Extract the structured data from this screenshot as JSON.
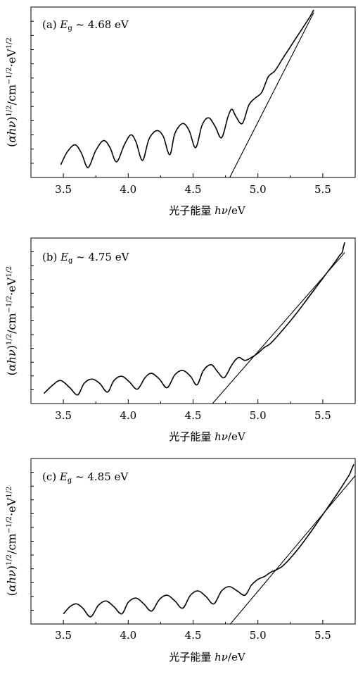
{
  "chart_data": [
    {
      "type": "line",
      "panel_label": "(a)",
      "annotation": "E_g ~ 4.68 eV",
      "annotation_parts": {
        "symbol": "E",
        "subscript": "g",
        "tilde": "~",
        "value": "4.68 eV"
      },
      "xlabel": "光子能量 hν/eV",
      "ylabel": "(αhν)^{1/2}/cm^{-1/2}·eV^{1/2}",
      "xlim": [
        3.25,
        5.75
      ],
      "xticks": [
        3.5,
        4.0,
        4.5,
        5.0,
        5.5
      ],
      "xtick_labels": [
        "3.5",
        "4.0",
        "4.5",
        "5.0",
        "5.5"
      ],
      "series": [
        {
          "x": [
            3.48,
            3.53,
            3.59,
            3.64,
            3.69,
            3.75,
            3.81,
            3.86,
            3.91,
            3.97,
            4.02,
            4.06,
            4.11,
            4.16,
            4.22,
            4.27,
            4.32,
            4.36,
            4.42,
            4.47,
            4.52,
            4.57,
            4.62,
            4.67,
            4.72,
            4.77,
            4.8,
            4.83,
            4.88,
            4.93,
            4.98,
            5.03,
            5.08,
            5.13,
            5.2,
            5.3,
            5.4,
            5.43
          ],
          "y": [
            0.04,
            0.13,
            0.18,
            0.12,
            0.02,
            0.14,
            0.21,
            0.16,
            0.06,
            0.18,
            0.25,
            0.2,
            0.07,
            0.22,
            0.28,
            0.24,
            0.11,
            0.26,
            0.33,
            0.28,
            0.16,
            0.32,
            0.37,
            0.31,
            0.23,
            0.38,
            0.43,
            0.38,
            0.33,
            0.46,
            0.51,
            0.55,
            0.66,
            0.7,
            0.8,
            0.94,
            1.08,
            1.13
          ]
        },
        {
          "x": [
            4.66,
            5.43
          ],
          "y": [
            -0.27,
            1.11
          ]
        }
      ]
    },
    {
      "type": "line",
      "panel_label": "(b)",
      "annotation": "E_g ~ 4.75 eV",
      "annotation_parts": {
        "symbol": "E",
        "subscript": "g",
        "tilde": "~",
        "value": "4.75 eV"
      },
      "xlabel": "光子能量 hν/eV",
      "ylabel": "(αhν)^{1/2}/cm^{-1/2}·eV^{1/2}",
      "xlim": [
        3.25,
        5.75
      ],
      "xticks": [
        3.5,
        4.0,
        4.5,
        5.0,
        5.5
      ],
      "xtick_labels": [
        "3.5",
        "4.0",
        "4.5",
        "5.0",
        "5.5"
      ],
      "series": [
        {
          "x": [
            3.35,
            3.42,
            3.48,
            3.55,
            3.61,
            3.66,
            3.72,
            3.78,
            3.84,
            3.89,
            3.95,
            4.01,
            4.07,
            4.13,
            4.18,
            4.24,
            4.3,
            4.36,
            4.42,
            4.48,
            4.53,
            4.58,
            4.64,
            4.69,
            4.74,
            4.8,
            4.85,
            4.9,
            4.95,
            5.0,
            5.05,
            5.1,
            5.2,
            5.3,
            5.4,
            5.5,
            5.6,
            5.63,
            5.65,
            5.66,
            5.67
          ],
          "y": [
            0.02,
            0.08,
            0.11,
            0.06,
            0.01,
            0.09,
            0.12,
            0.09,
            0.03,
            0.11,
            0.14,
            0.1,
            0.05,
            0.13,
            0.16,
            0.12,
            0.06,
            0.15,
            0.18,
            0.14,
            0.08,
            0.18,
            0.22,
            0.17,
            0.13,
            0.22,
            0.27,
            0.25,
            0.27,
            0.3,
            0.34,
            0.37,
            0.47,
            0.58,
            0.7,
            0.82,
            0.94,
            0.98,
            1.0,
            1.04,
            1.07
          ]
        },
        {
          "x": [
            4.65,
            5.67
          ],
          "y": [
            -0.05,
            1.0
          ]
        }
      ]
    },
    {
      "type": "line",
      "panel_label": "(c)",
      "annotation": "E_g ~ 4.85 eV",
      "annotation_parts": {
        "symbol": "E",
        "subscript": "g",
        "tilde": "~",
        "value": "4.85 eV"
      },
      "xlabel": "光子能量 hν/eV",
      "ylabel": "(αhν)^{1/2}/cm^{-1/2}·eV^{1/2}",
      "xlim": [
        3.25,
        5.75
      ],
      "xticks": [
        3.5,
        4.0,
        4.5,
        5.0,
        5.5
      ],
      "xtick_labels": [
        "3.5",
        "4.0",
        "4.5",
        "5.0",
        "5.5"
      ],
      "series": [
        {
          "x": [
            3.5,
            3.55,
            3.6,
            3.65,
            3.71,
            3.77,
            3.83,
            3.89,
            3.95,
            4.0,
            4.06,
            4.12,
            4.18,
            4.24,
            4.3,
            4.36,
            4.42,
            4.48,
            4.54,
            4.6,
            4.66,
            4.72,
            4.78,
            4.84,
            4.9,
            4.95,
            5.0,
            5.05,
            5.1,
            5.15,
            5.2,
            5.3,
            5.4,
            5.5,
            5.6,
            5.7,
            5.72,
            5.74
          ],
          "y": [
            0.02,
            0.07,
            0.09,
            0.06,
            0.0,
            0.08,
            0.11,
            0.07,
            0.02,
            0.1,
            0.13,
            0.09,
            0.04,
            0.12,
            0.15,
            0.11,
            0.06,
            0.15,
            0.18,
            0.14,
            0.09,
            0.18,
            0.21,
            0.18,
            0.15,
            0.22,
            0.26,
            0.28,
            0.31,
            0.33,
            0.36,
            0.46,
            0.58,
            0.71,
            0.84,
            0.98,
            1.02,
            1.06
          ]
        },
        {
          "x": [
            4.75,
            5.75
          ],
          "y": [
            -0.09,
            0.98
          ]
        }
      ]
    }
  ]
}
